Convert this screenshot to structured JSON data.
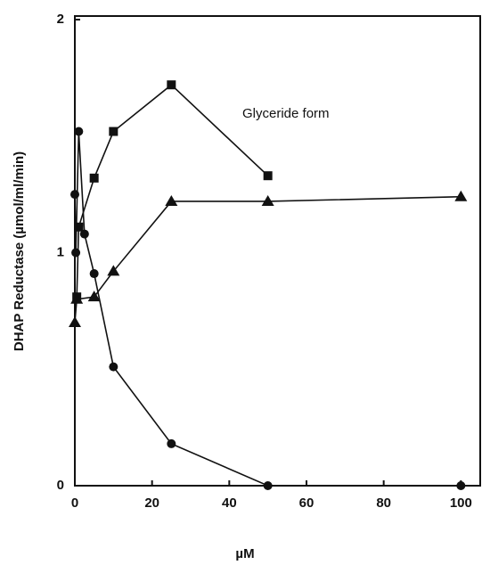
{
  "chart_data": {
    "type": "line",
    "x_label": "µM",
    "y_label": "DHAP Reductase  (µmol/ml/min)",
    "annotation": "Glyceride form",
    "xlim": [
      0,
      105
    ],
    "ylim": [
      0,
      2
    ],
    "xticks": [
      0,
      20,
      40,
      60,
      80,
      100
    ],
    "yticks": [
      0,
      1,
      2
    ],
    "series": [
      {
        "marker": "square",
        "color": "#111111",
        "x": [
          0.5,
          1,
          5,
          10,
          25,
          50
        ],
        "values": [
          0.81,
          1.11,
          1.32,
          1.52,
          1.72,
          1.33
        ]
      },
      {
        "marker": "triangle",
        "color": "#111111",
        "x": [
          0,
          0.5,
          5,
          10,
          25,
          50,
          100
        ],
        "values": [
          0.7,
          0.8,
          0.81,
          0.92,
          1.22,
          1.22,
          1.24
        ]
      },
      {
        "marker": "circle",
        "color": "#111111",
        "x": [
          0,
          0.25,
          1,
          2.5,
          5,
          10,
          25,
          50,
          100
        ],
        "values": [
          1.25,
          1.0,
          1.52,
          1.08,
          0.91,
          0.51,
          0.18,
          0,
          0
        ]
      }
    ]
  }
}
